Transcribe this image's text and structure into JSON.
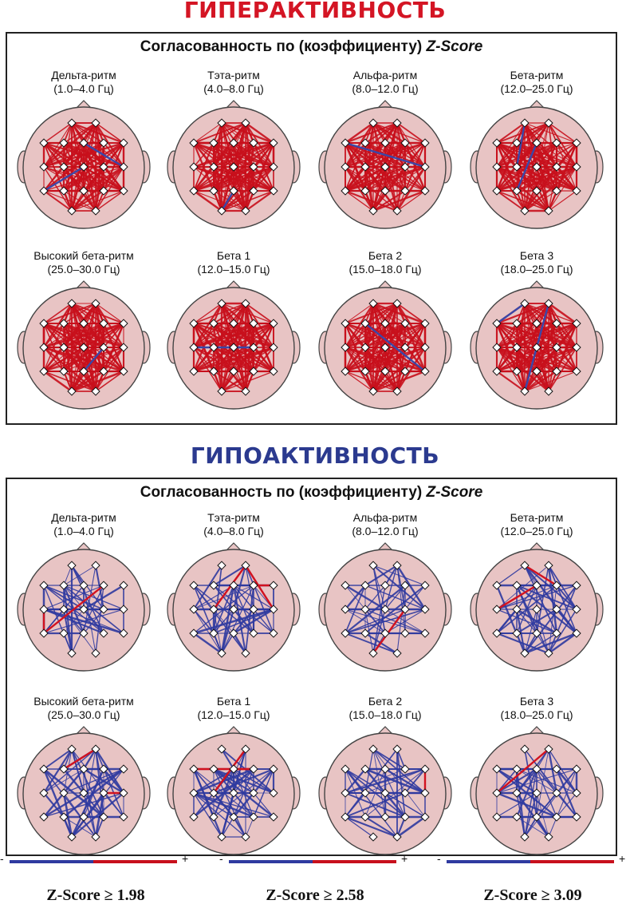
{
  "sections": [
    {
      "title": "ГИПЕРАКТИВНОСТЬ",
      "heading_text": "Согласованность по (коэффициенту) ",
      "heading_italic": "Z-Score",
      "line_color": "#c8101c",
      "accent_color": "#3a47a8",
      "density": "very-dense",
      "bands": [
        {
          "name": "Дельта-ритм",
          "range": "(1.0–4.0 Гц)"
        },
        {
          "name": "Тэта-ритм",
          "range": "(4.0–8.0 Гц)"
        },
        {
          "name": "Альфа-ритм",
          "range": "(8.0–12.0 Гц)"
        },
        {
          "name": "Бета-ритм",
          "range": "(12.0–25.0 Гц)"
        },
        {
          "name": "Высокий бета-ритм",
          "range": "(25.0–30.0 Гц)"
        },
        {
          "name": "Бета 1",
          "range": "(12.0–15.0 Гц)"
        },
        {
          "name": "Бета 2",
          "range": "(15.0–18.0 Гц)"
        },
        {
          "name": "Бета 3",
          "range": "(18.0–25.0 Гц)"
        }
      ]
    },
    {
      "title": "ГИПОАКТИВНОСТЬ",
      "heading_text": "Согласованность по (коэффициенту) ",
      "heading_italic": "Z-Score",
      "line_color": "#2f3aa0",
      "accent_color": "#d2121f",
      "density": "moderate",
      "bands": [
        {
          "name": "Дельта-ритм",
          "range": "(1.0–4.0 Гц)"
        },
        {
          "name": "Тэта-ритм",
          "range": "(4.0–8.0 Гц)"
        },
        {
          "name": "Альфа-ритм",
          "range": "(8.0–12.0 Гц)"
        },
        {
          "name": "Бета-ритм",
          "range": "(12.0–25.0 Гц)"
        },
        {
          "name": "Высокий бета-ритм",
          "range": "(25.0–30.0 Гц)"
        },
        {
          "name": "Бета 1",
          "range": "(12.0–15.0 Гц)"
        },
        {
          "name": "Бета 2",
          "range": "(15.0–18.0 Гц)"
        },
        {
          "name": "Бета 3",
          "range": "(18.0–25.0 Гц)"
        }
      ]
    }
  ],
  "legend": [
    {
      "minus": "-",
      "plus": "+",
      "label": "Z-Score ≥ 1.98"
    },
    {
      "minus": "-",
      "plus": "+",
      "label": "Z-Score ≥ 2.58"
    },
    {
      "minus": "-",
      "plus": "+",
      "label": "Z-Score ≥ 3.09"
    }
  ],
  "colors": {
    "head_fill": "#e8c4c4",
    "head_stroke": "#444444",
    "electrode_fill": "#ffffff",
    "legend_negative": "#2f3aa0",
    "legend_positive": "#c8101c"
  }
}
